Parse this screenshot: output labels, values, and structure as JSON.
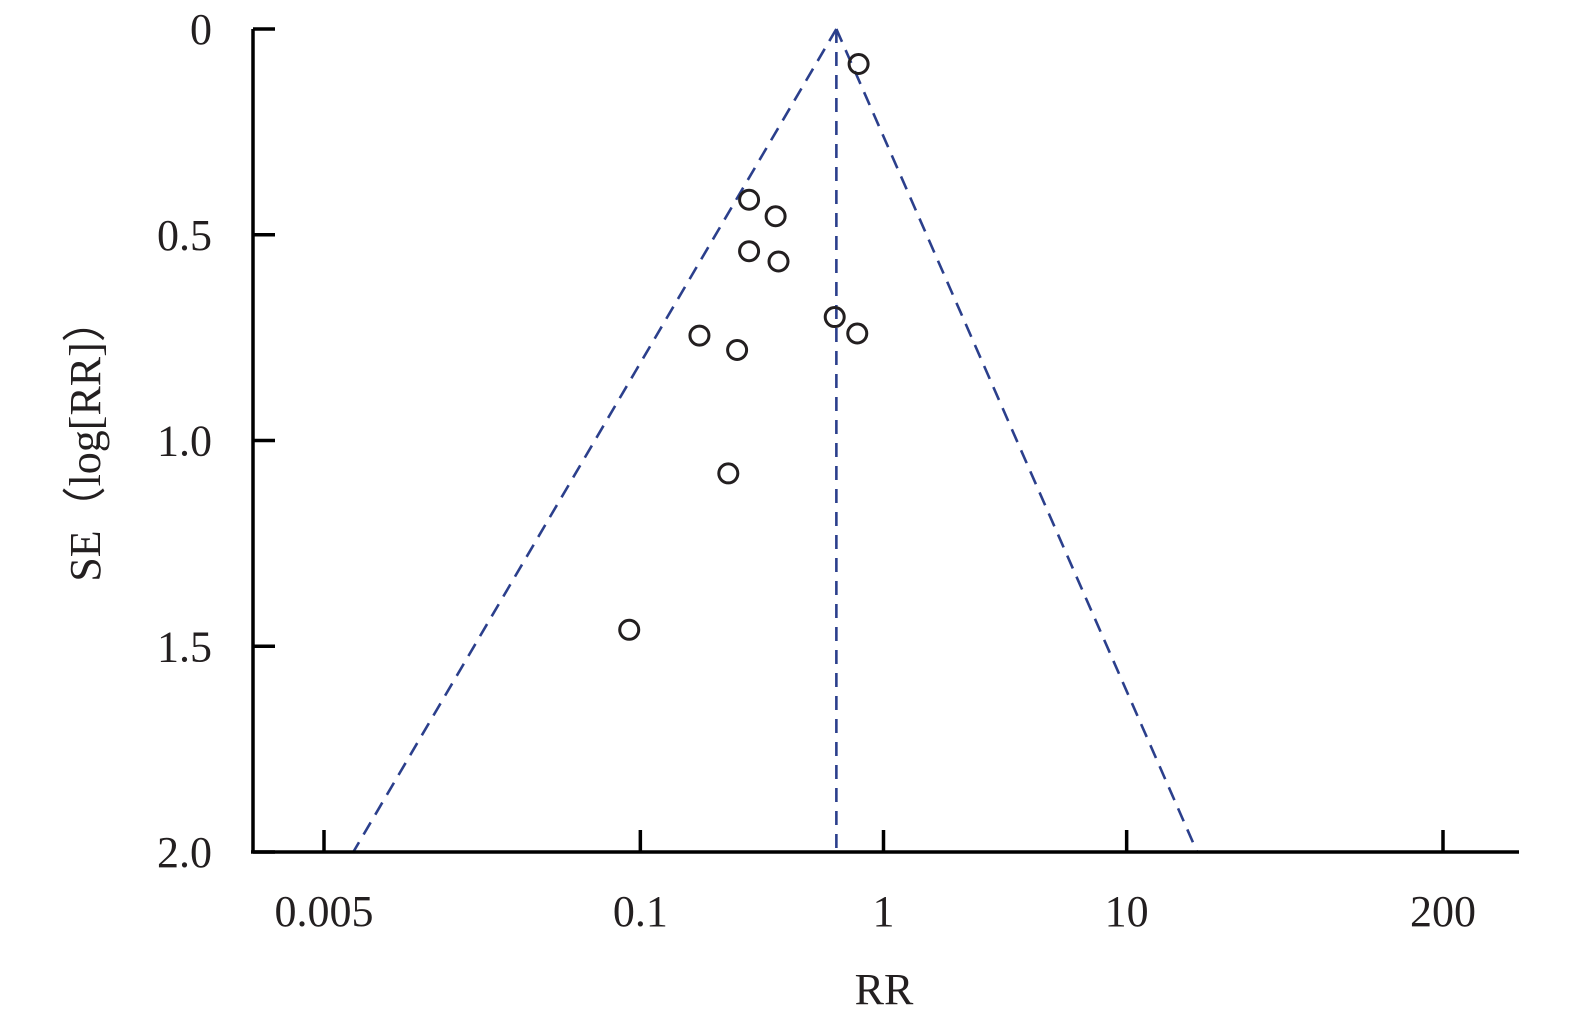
{
  "chart_data": {
    "type": "scatter",
    "title": "",
    "xlabel": "RR",
    "ylabel": "SE（log[RR]）",
    "x_scale": "log",
    "xlim": [
      0.003,
      350
    ],
    "ylim": [
      0,
      2.0
    ],
    "y_inverted": true,
    "x_ticks": [
      {
        "value": 0.005,
        "label": "0.005"
      },
      {
        "value": 0.1,
        "label": "0.1"
      },
      {
        "value": 1,
        "label": "1"
      },
      {
        "value": 10,
        "label": "10"
      },
      {
        "value": 200,
        "label": "200"
      }
    ],
    "y_ticks": [
      {
        "value": 0,
        "label": "0"
      },
      {
        "value": 0.5,
        "label": "0.5"
      },
      {
        "value": 1.0,
        "label": "1.0"
      },
      {
        "value": 1.5,
        "label": "1.5"
      },
      {
        "value": 2.0,
        "label": "2.0"
      }
    ],
    "pooled_rr": 0.64,
    "funnel": {
      "apex_se": 0,
      "base_se": 2.0,
      "base_left_rr": 0.0066,
      "base_right_rr": 19.5
    },
    "points": [
      {
        "x": 0.79,
        "y": 0.085
      },
      {
        "x": 0.28,
        "y": 0.415
      },
      {
        "x": 0.36,
        "y": 0.455
      },
      {
        "x": 0.28,
        "y": 0.54
      },
      {
        "x": 0.37,
        "y": 0.565
      },
      {
        "x": 0.63,
        "y": 0.7
      },
      {
        "x": 0.78,
        "y": 0.74
      },
      {
        "x": 0.175,
        "y": 0.745
      },
      {
        "x": 0.25,
        "y": 0.78
      },
      {
        "x": 0.23,
        "y": 1.08
      },
      {
        "x": 0.09,
        "y": 1.46
      }
    ],
    "colors": {
      "funnel": "#2b3f8c",
      "points": "#231f20",
      "axes": "#000000"
    },
    "grid": false,
    "legend": "none"
  }
}
